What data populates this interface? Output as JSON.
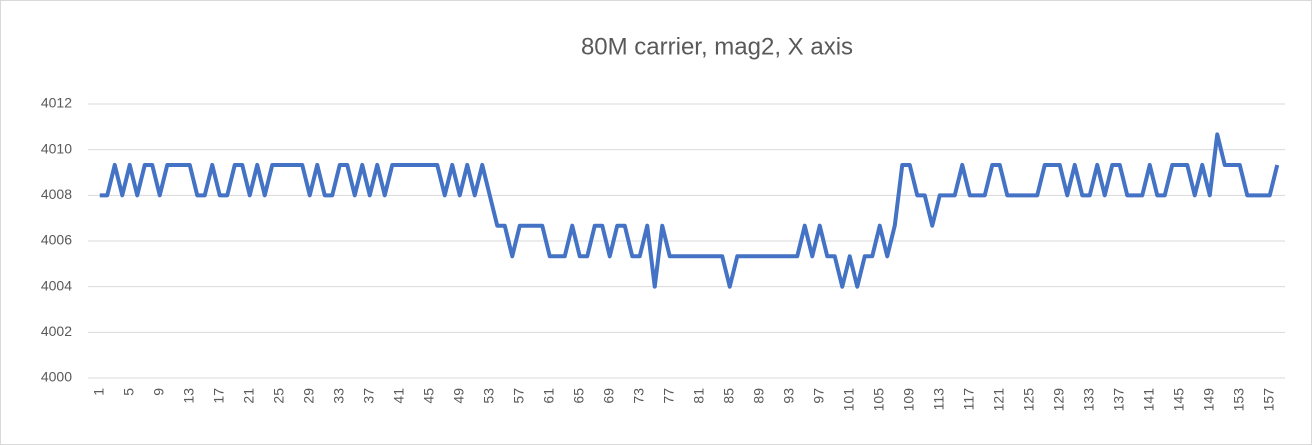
{
  "chart_data": {
    "type": "line",
    "title": "80M carrier, mag2, X axis",
    "categories": [
      1,
      null,
      null,
      null,
      5,
      null,
      null,
      null,
      9,
      null,
      null,
      null,
      13,
      null,
      null,
      null,
      17,
      null,
      null,
      null,
      21,
      null,
      null,
      null,
      25,
      null,
      null,
      null,
      29,
      null,
      null,
      null,
      33,
      null,
      null,
      null,
      37,
      null,
      null,
      null,
      41,
      null,
      null,
      null,
      45,
      null,
      null,
      null,
      49,
      null,
      null,
      null,
      53,
      null,
      null,
      null,
      57,
      null,
      null,
      null,
      61,
      null,
      null,
      null,
      65,
      null,
      null,
      null,
      69,
      null,
      null,
      null,
      73,
      null,
      null,
      null,
      77,
      null,
      null,
      null,
      81,
      null,
      null,
      null,
      85,
      null,
      null,
      null,
      89,
      null,
      null,
      null,
      93,
      null,
      null,
      null,
      97,
      null,
      null,
      null,
      101,
      null,
      null,
      null,
      105,
      null,
      null,
      null,
      109,
      null,
      null,
      null,
      113,
      null,
      null,
      null,
      117,
      null,
      null,
      null,
      121,
      null,
      null,
      null,
      125,
      null,
      null,
      null,
      129,
      null,
      null,
      null,
      133,
      null,
      null,
      null,
      137,
      null,
      null,
      null,
      141,
      null,
      null,
      null,
      145,
      null,
      null,
      null,
      149,
      null,
      null,
      null,
      153,
      null,
      null,
      null,
      157,
      null
    ],
    "values": [
      4008,
      4008,
      4009.33,
      4008,
      4009.33,
      4008,
      4009.33,
      4009.33,
      4008,
      4009.33,
      4009.33,
      4009.33,
      4009.33,
      4008,
      4008,
      4009.33,
      4008,
      4008,
      4009.33,
      4009.33,
      4008,
      4009.33,
      4008,
      4009.33,
      4009.33,
      4009.33,
      4009.33,
      4009.33,
      4008,
      4009.33,
      4008,
      4008,
      4009.33,
      4009.33,
      4008,
      4009.33,
      4008,
      4009.33,
      4008,
      4009.33,
      4009.33,
      4009.33,
      4009.33,
      4009.33,
      4009.33,
      4009.33,
      4008,
      4009.33,
      4008,
      4009.33,
      4008,
      4009.33,
      4008,
      4006.67,
      4006.67,
      4005.33,
      4006.67,
      4006.67,
      4006.67,
      4006.67,
      4005.33,
      4005.33,
      4005.33,
      4006.67,
      4005.33,
      4005.33,
      4006.67,
      4006.67,
      4005.33,
      4006.67,
      4006.67,
      4005.33,
      4005.33,
      4006.67,
      4004,
      4006.67,
      4005.33,
      4005.33,
      4005.33,
      4005.33,
      4005.33,
      4005.33,
      4005.33,
      4005.33,
      4004,
      4005.33,
      4005.33,
      4005.33,
      4005.33,
      4005.33,
      4005.33,
      4005.33,
      4005.33,
      4005.33,
      4006.67,
      4005.33,
      4006.67,
      4005.33,
      4005.33,
      4004,
      4005.33,
      4004,
      4005.33,
      4005.33,
      4006.67,
      4005.33,
      4006.67,
      4009.33,
      4009.33,
      4008,
      4008,
      4006.67,
      4008,
      4008,
      4008,
      4009.33,
      4008,
      4008,
      4008,
      4009.33,
      4009.33,
      4008,
      4008,
      4008,
      4008,
      4008,
      4009.33,
      4009.33,
      4009.33,
      4008,
      4009.33,
      4008,
      4008,
      4009.33,
      4008,
      4009.33,
      4009.33,
      4008,
      4008,
      4008,
      4009.33,
      4008,
      4008,
      4009.33,
      4009.33,
      4009.33,
      4008,
      4009.33,
      4008,
      4010.67,
      4009.33,
      4009.33,
      4009.33,
      4008,
      4008,
      4008,
      4008,
      4009.33
    ],
    "color": "#4472c4",
    "ylim": [
      4000,
      4012
    ],
    "yticks": [
      4000,
      4002,
      4004,
      4006,
      4008,
      4010,
      4012
    ],
    "grid": true
  }
}
